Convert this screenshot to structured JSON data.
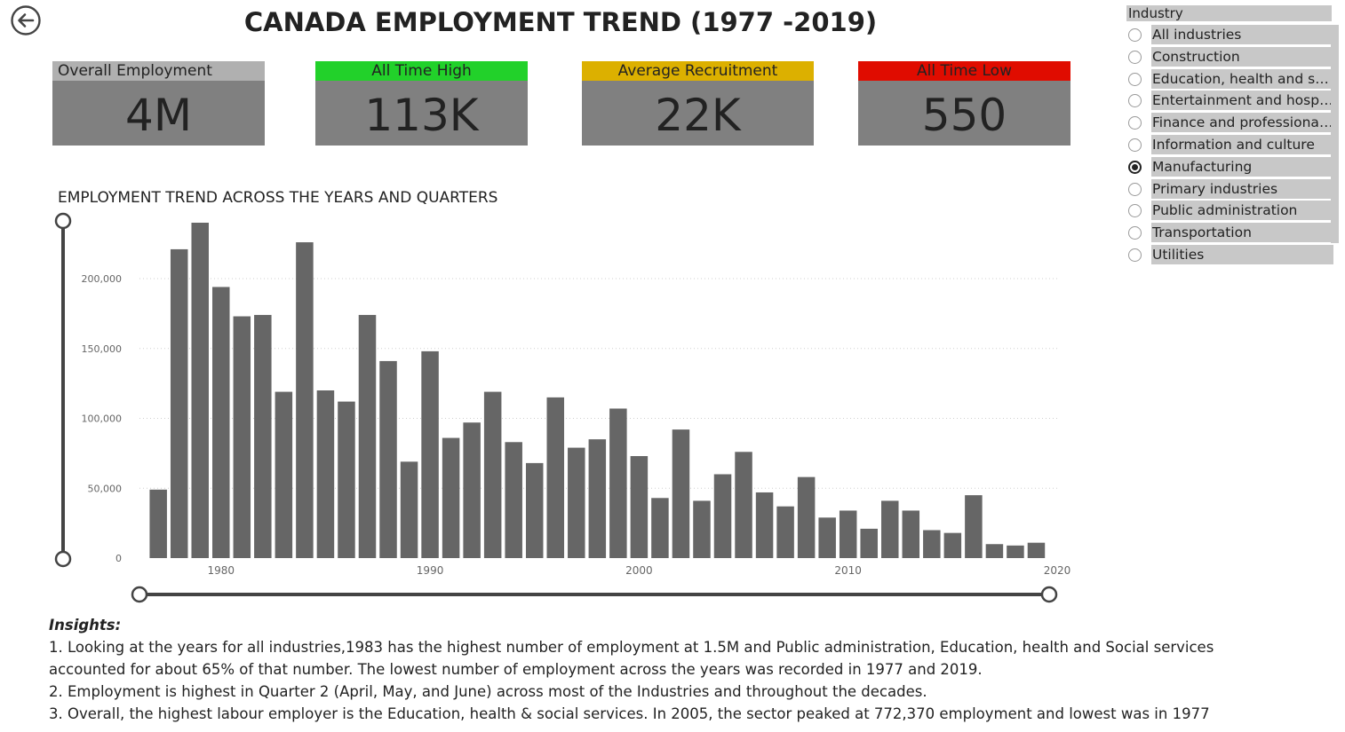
{
  "page": {
    "title": "CANADA EMPLOYMENT TREND (1977 -2019)"
  },
  "back_button": {
    "icon": "back-arrow-icon"
  },
  "kpis": [
    {
      "label": "Overall Employment",
      "value": "4M",
      "color": "#b0b0b0"
    },
    {
      "label": "All Time High",
      "value": "113K",
      "color": "#22d12a"
    },
    {
      "label": "Average Recruitment",
      "value": "22K",
      "color": "#dcb000"
    },
    {
      "label": "All Time Low",
      "value": "550",
      "color": "#e00c00"
    }
  ],
  "chart_title": "EMPLOYMENT TREND ACROSS THE YEARS AND QUARTERS",
  "chart_data": {
    "type": "bar",
    "x": [
      1977,
      1978,
      1979,
      1980,
      1981,
      1982,
      1983,
      1984,
      1985,
      1986,
      1987,
      1988,
      1989,
      1990,
      1991,
      1992,
      1993,
      1994,
      1995,
      1996,
      1997,
      1998,
      1999,
      2000,
      2001,
      2002,
      2003,
      2004,
      2005,
      2006,
      2007,
      2008,
      2009,
      2010,
      2011,
      2012,
      2013,
      2014,
      2015,
      2016,
      2017,
      2018,
      2019
    ],
    "values": [
      49000,
      221000,
      240000,
      194000,
      173000,
      174000,
      119000,
      226000,
      120000,
      112000,
      174000,
      141000,
      69000,
      148000,
      86000,
      97000,
      119000,
      83000,
      68000,
      115000,
      79000,
      85000,
      107000,
      73000,
      43000,
      92000,
      41000,
      60000,
      76000,
      47000,
      37000,
      58000,
      29000,
      34000,
      21000,
      41000,
      34000,
      20000,
      18000,
      45000,
      10000,
      9000,
      11000
    ],
    "xticks": [
      "1980",
      "1990",
      "2000",
      "2010",
      "2020"
    ],
    "xtick_values": [
      1980,
      1990,
      2000,
      2010,
      2020
    ],
    "yticks": [
      "0",
      "50,000",
      "100,000",
      "150,000",
      "200,000"
    ],
    "ytick_values": [
      0,
      50000,
      100000,
      150000,
      200000
    ],
    "xlim": [
      1976.1,
      2020
    ],
    "ylim": [
      0,
      240000
    ],
    "bar_color": "#666666",
    "grid": true
  },
  "slicer": {
    "header": "Industry",
    "items": [
      {
        "label": "All industries",
        "selected": false
      },
      {
        "label": "Construction",
        "selected": false
      },
      {
        "label": "Education, health and soc...",
        "selected": false
      },
      {
        "label": "Entertainment and hospit...",
        "selected": false
      },
      {
        "label": "Finance and professional ...",
        "selected": false
      },
      {
        "label": "Information and culture",
        "selected": false
      },
      {
        "label": "Manufacturing",
        "selected": true
      },
      {
        "label": "Primary industries",
        "selected": false
      },
      {
        "label": "Public administration",
        "selected": false
      },
      {
        "label": "Transportation",
        "selected": false
      },
      {
        "label": "Utilities",
        "selected": false
      }
    ]
  },
  "insights": {
    "title": "Insights:",
    "lines": [
      "1. Looking at the years for all industries,1983 has the highest number of employment at 1.5M and Public administration, Education, health and Social services accounted for about 65% of that number. The lowest number of employment across the years was recorded in 1977 and 2019.",
      "2. Employment is highest in Quarter 2 (April, May, and June) across most of the Industries and throughout the decades.",
      "3. Overall, the highest labour employer is the Education, health & social services. In 2005, the sector peaked at 772,370 employment and lowest was in 1977"
    ]
  }
}
